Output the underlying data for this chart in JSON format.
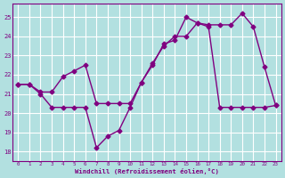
{
  "line1_x": [
    0,
    1,
    2,
    3,
    4,
    5,
    6,
    7,
    8,
    9,
    10,
    11,
    12,
    13,
    14,
    15,
    16,
    17,
    18,
    19,
    20,
    21,
    22,
    23
  ],
  "line1_y": [
    21.5,
    21.5,
    21.0,
    20.3,
    20.3,
    20.3,
    20.3,
    18.2,
    18.8,
    19.1,
    20.3,
    21.6,
    22.5,
    23.6,
    23.8,
    25.0,
    24.7,
    24.5,
    20.3,
    20.3,
    20.3,
    20.3,
    20.3,
    20.4
  ],
  "line2_x": [
    0,
    1,
    2,
    3,
    4,
    5,
    6,
    7,
    8,
    9,
    10,
    11,
    12,
    13,
    14,
    15,
    16,
    17,
    18,
    19,
    20,
    21,
    22,
    23
  ],
  "line2_y": [
    21.5,
    21.5,
    21.1,
    21.1,
    21.9,
    22.2,
    22.5,
    20.5,
    20.5,
    20.5,
    20.5,
    21.6,
    22.6,
    23.5,
    24.0,
    24.0,
    24.7,
    24.6,
    24.6,
    24.6,
    25.2,
    24.5,
    22.4,
    20.4
  ],
  "color": "#800080",
  "bg_color": "#b2e0e0",
  "grid_color": "#d0eaea",
  "xlabel": "Windchill (Refroidissement éolien,°C)",
  "ylim": [
    17.5,
    25.7
  ],
  "xlim": [
    -0.5,
    23.5
  ],
  "yticks": [
    18,
    19,
    20,
    21,
    22,
    23,
    24,
    25
  ],
  "xticks": [
    0,
    1,
    2,
    3,
    4,
    5,
    6,
    7,
    8,
    9,
    10,
    11,
    12,
    13,
    14,
    15,
    16,
    17,
    18,
    19,
    20,
    21,
    22,
    23
  ],
  "marker": "D",
  "markersize": 2.5,
  "linewidth": 1.0
}
